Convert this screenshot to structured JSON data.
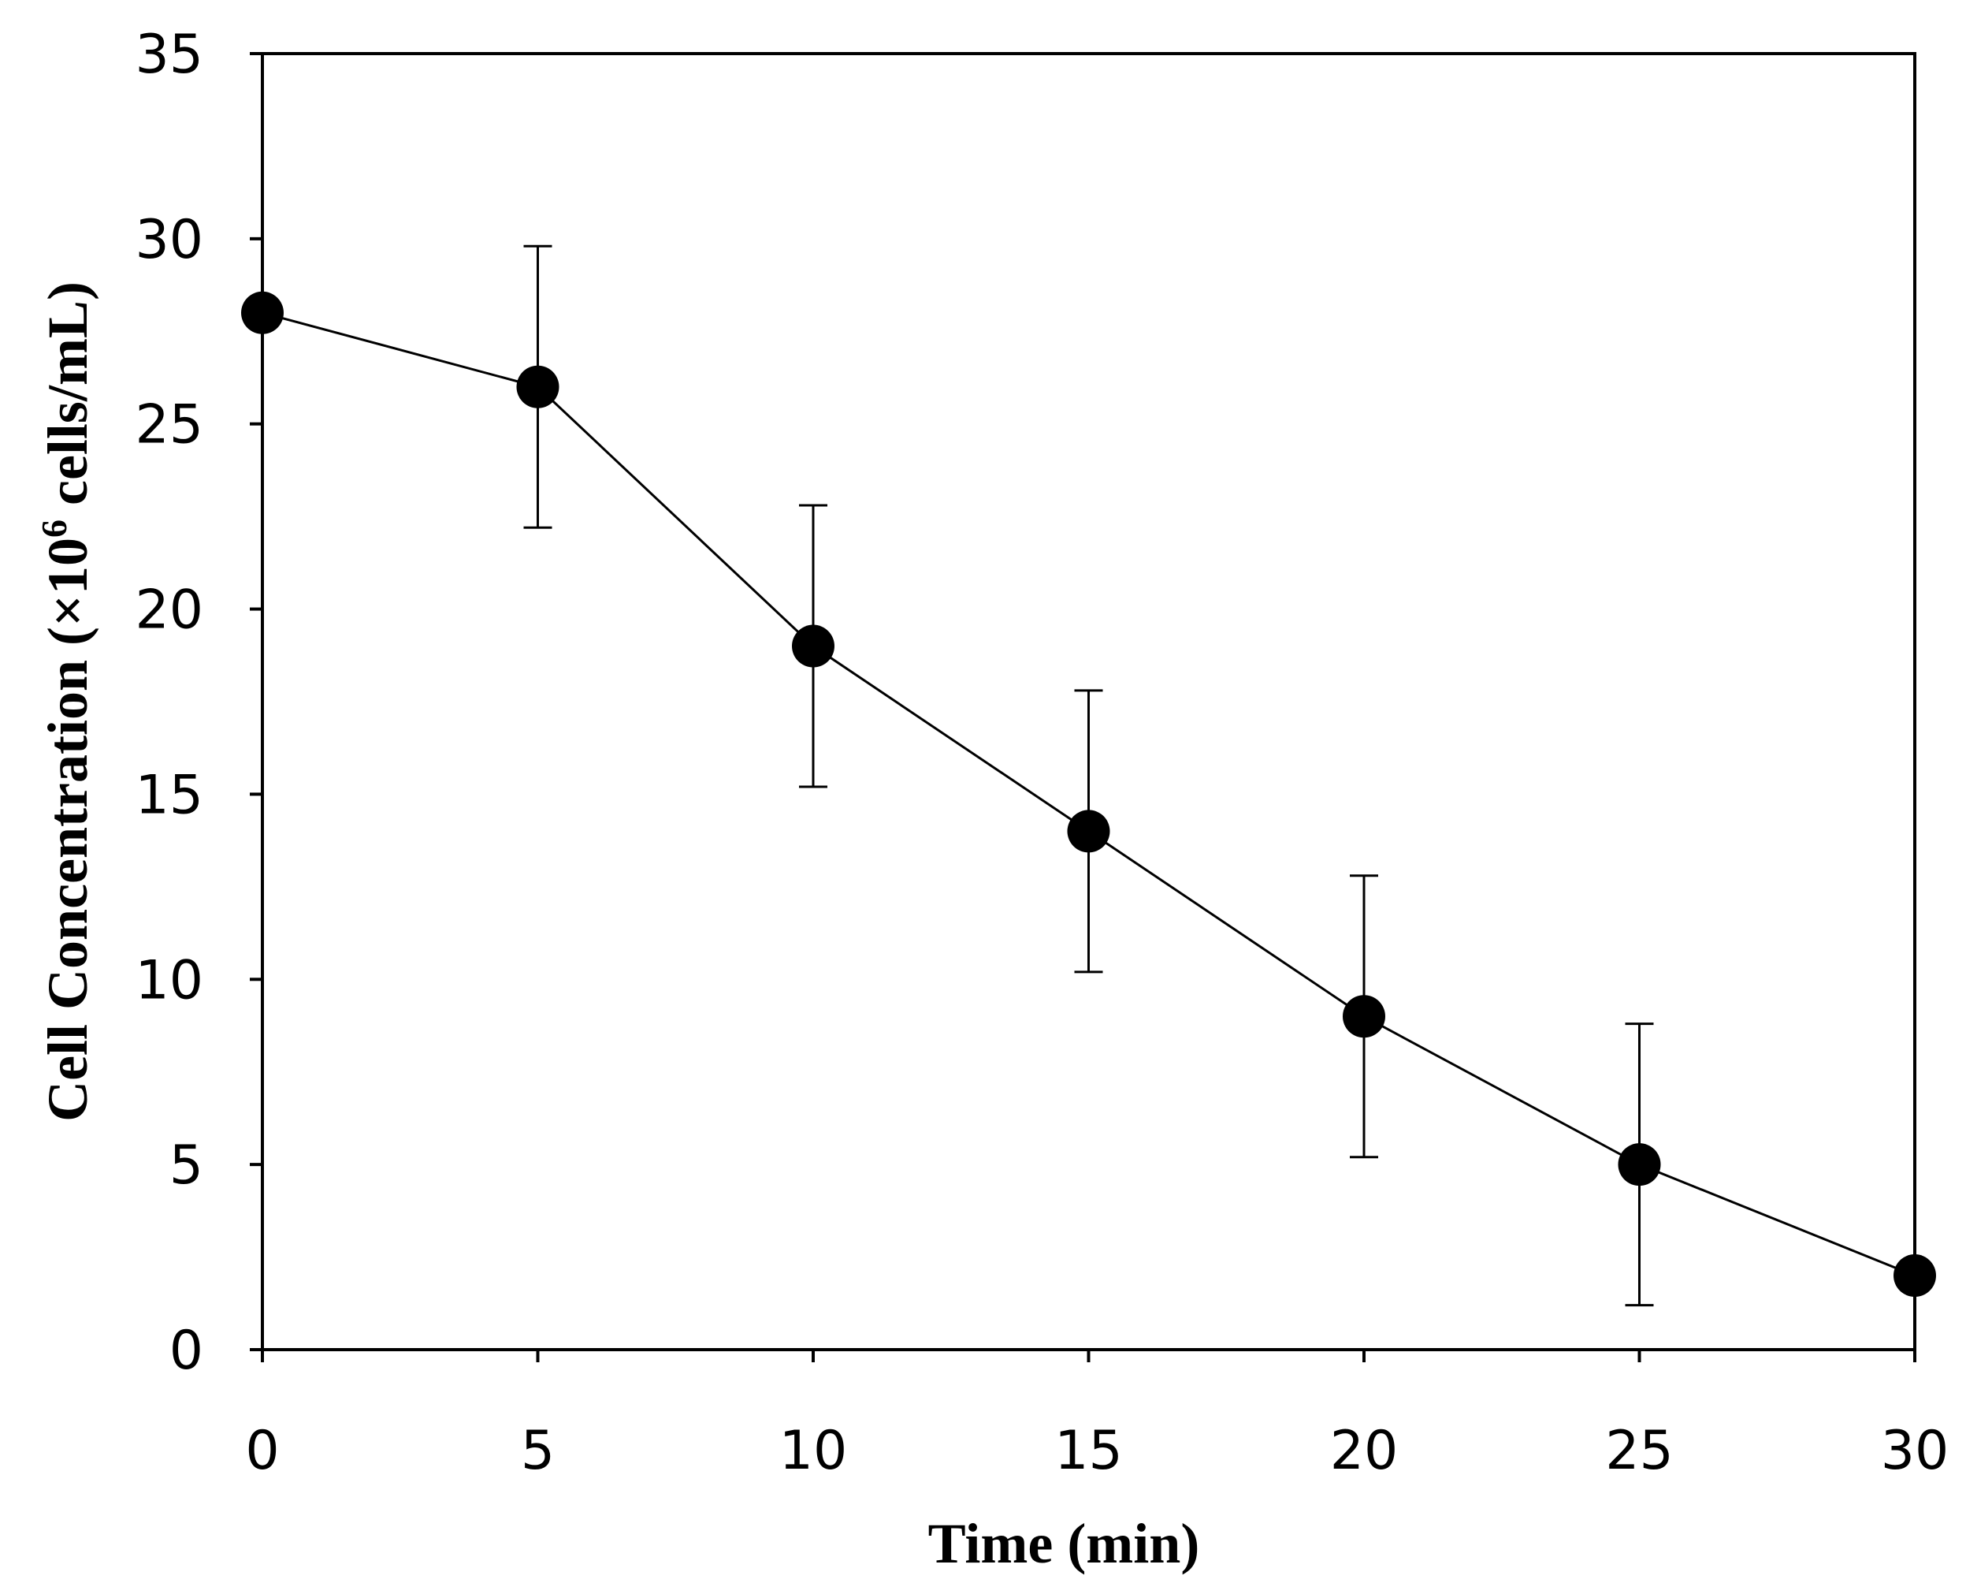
{
  "chart_data": {
    "type": "line",
    "title": "",
    "xlabel": "Time (min)",
    "ylabel_parts": {
      "prefix": "Cell Concentration (×10",
      "superscript": "6",
      "suffix": " cells/mL)"
    },
    "xlim": [
      0,
      30
    ],
    "ylim": [
      0,
      35
    ],
    "x_ticks": [
      0,
      5,
      10,
      15,
      20,
      25,
      30
    ],
    "x_tick_labels": [
      "0",
      "5",
      "10",
      "15",
      "20",
      "25",
      "30"
    ],
    "y_ticks": [
      0,
      5,
      10,
      15,
      20,
      25,
      30,
      35
    ],
    "y_tick_labels": [
      "0",
      "5",
      "10",
      "15",
      "20",
      "25",
      "30",
      "35"
    ],
    "grid": false,
    "series": [
      {
        "name": "Cell Concentration",
        "marker": "filled-circle",
        "color": "#000000",
        "x": [
          0,
          5,
          10,
          15,
          20,
          25,
          30
        ],
        "y": [
          28,
          26,
          19,
          14,
          9,
          5,
          2
        ],
        "error_upper": [
          28,
          29.8,
          22.8,
          17.8,
          12.8,
          8.8,
          2
        ],
        "error_lower": [
          28,
          22.2,
          15.2,
          10.2,
          5.2,
          1.2,
          2
        ]
      }
    ]
  }
}
